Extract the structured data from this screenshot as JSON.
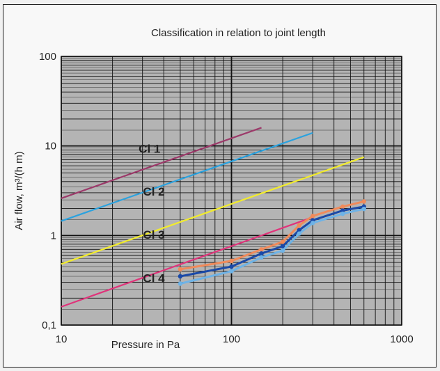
{
  "chart_data": {
    "type": "line",
    "title": "Classification in relation to joint length",
    "xlabel": "Pressure in Pa",
    "ylabel": "Air flow, m³/(h m)",
    "x_scale": "log",
    "y_scale": "log",
    "xlim": [
      10,
      1000
    ],
    "ylim": [
      0.1,
      100
    ],
    "x_ticks": [
      {
        "value": 10,
        "label": "10"
      },
      {
        "value": 100,
        "label": "100"
      },
      {
        "value": 1000,
        "label": "1000"
      }
    ],
    "y_ticks": [
      {
        "value": 0.1,
        "label": "0,1"
      },
      {
        "value": 1,
        "label": "1"
      },
      {
        "value": 10,
        "label": "10"
      },
      {
        "value": 100,
        "label": "100"
      }
    ],
    "grid": true,
    "class_lines": [
      {
        "label": "Cl 1",
        "color": "#9c3a6a",
        "x": [
          10,
          150
        ],
        "y": [
          2.6,
          16
        ],
        "label_at": [
          33,
          8.4
        ]
      },
      {
        "label": "Cl 2",
        "color": "#2aa2df",
        "x": [
          10,
          300
        ],
        "y": [
          1.45,
          14
        ],
        "label_at": [
          35,
          2.8
        ]
      },
      {
        "label": "Cl 3",
        "color": "#f2ec2c",
        "x": [
          10,
          600
        ],
        "y": [
          0.48,
          7.5
        ],
        "label_at": [
          35,
          0.92
        ]
      },
      {
        "label": "Cl 4",
        "color": "#e0337a",
        "x": [
          10,
          300
        ],
        "y": [
          0.16,
          1.6
        ],
        "label_at": [
          35,
          0.3
        ]
      }
    ],
    "series": [
      {
        "color": "#f08a5a",
        "x": [
          50,
          100,
          150,
          200,
          250,
          300,
          450,
          600
        ],
        "y": [
          0.42,
          0.52,
          0.7,
          0.85,
          1.3,
          1.65,
          2.1,
          2.4
        ]
      },
      {
        "color": "#1a49a8",
        "x": [
          50,
          100,
          150,
          200,
          250,
          300,
          450,
          600
        ],
        "y": [
          0.35,
          0.45,
          0.63,
          0.76,
          1.15,
          1.48,
          1.9,
          2.1
        ]
      },
      {
        "color": "#6fb3e6",
        "x": [
          50,
          100,
          150,
          200,
          250,
          300,
          450,
          600
        ],
        "y": [
          0.29,
          0.4,
          0.57,
          0.68,
          1.05,
          1.38,
          1.75,
          1.98
        ]
      }
    ]
  }
}
